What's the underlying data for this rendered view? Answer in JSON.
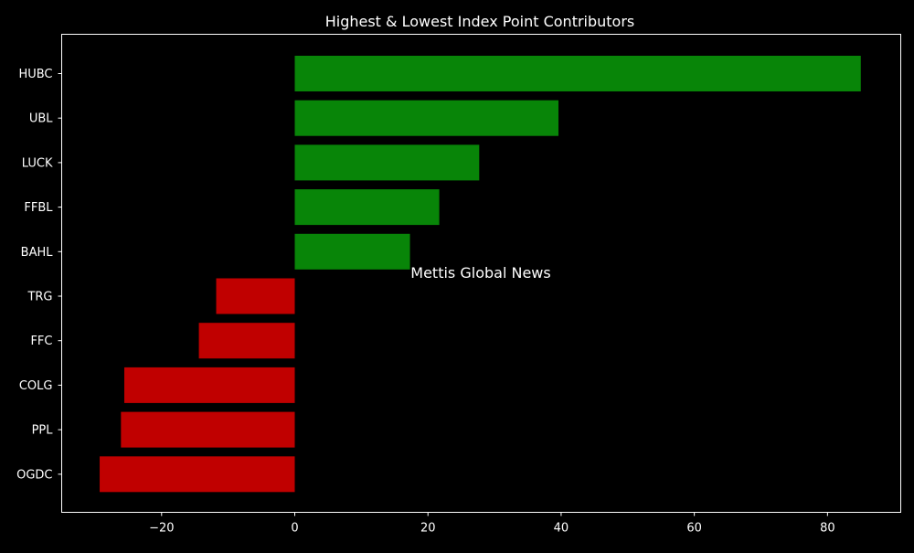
{
  "chart_data": {
    "type": "bar",
    "orientation": "horizontal",
    "title": "Highest & Lowest Index Point Contributors",
    "xlabel": "",
    "ylabel": "",
    "categories": [
      "HUBC",
      "UBL",
      "LUCK",
      "FFBL",
      "BAHL",
      "TRG",
      "FFC",
      "COLG",
      "PPL",
      "OGDC"
    ],
    "values": [
      85.0,
      39.6,
      27.7,
      21.7,
      17.3,
      -11.8,
      -14.4,
      -25.6,
      -26.1,
      -29.3
    ],
    "xlim": [
      -35,
      91
    ],
    "xticks": [
      -20,
      0,
      20,
      40,
      60,
      80
    ],
    "xtick_labels": [
      "−20",
      "0",
      "20",
      "40",
      "60",
      "80"
    ],
    "grid": false,
    "legend": "none",
    "colors": {
      "positive": "#088508",
      "negative": "#c00000",
      "background": "#000000",
      "axes": "#ffffff",
      "text": "#ffffff"
    }
  },
  "watermark": {
    "text": "Mettis Global News",
    "color": "#b5632c"
  }
}
